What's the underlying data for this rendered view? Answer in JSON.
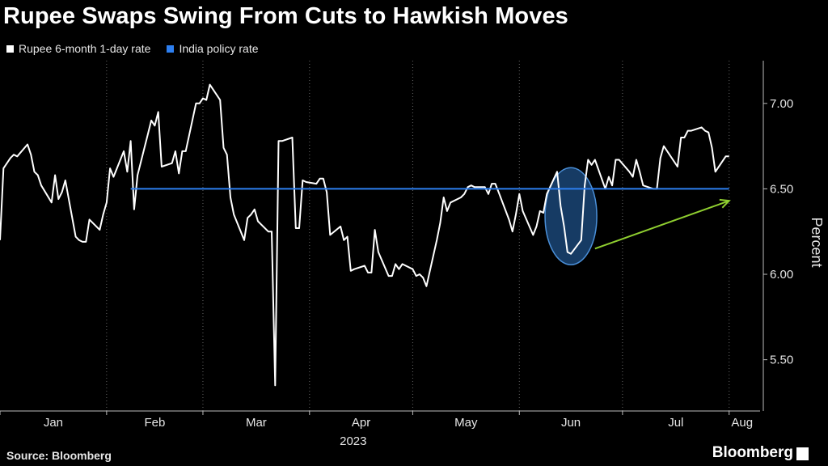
{
  "title": "Rupee Swaps Swing From Cuts to Hawkish Moves",
  "source": "Source: Bloomberg",
  "brand": "Bloomberg",
  "chart_data": {
    "type": "line",
    "legend": [
      {
        "name": "Rupee 6-month 1-day rate",
        "color": "#ffffff"
      },
      {
        "name": "India policy rate",
        "color": "#2d7ff0"
      }
    ],
    "ylabel": "Percent",
    "ylim": [
      5.2,
      7.25
    ],
    "yticks": [
      5.5,
      6.0,
      6.5,
      7.0
    ],
    "ytick_labels": [
      "5.50",
      "6.00",
      "6.50",
      "7.00"
    ],
    "xlim": [
      "2023-01-01",
      "2023-08-10"
    ],
    "xticks": [
      "Jan",
      "Feb",
      "Mar",
      "Apr",
      "May",
      "Jun",
      "Jul",
      "Aug"
    ],
    "xlabel": "2023",
    "grid": "vertical-dotted",
    "series": [
      {
        "name": "Rupee 6-month 1-day rate",
        "color": "#ffffff",
        "points": [
          [
            "2023-01-01",
            6.2
          ],
          [
            "2023-01-02",
            6.62
          ],
          [
            "2023-01-04",
            6.68
          ],
          [
            "2023-01-05",
            6.7
          ],
          [
            "2023-01-06",
            6.69
          ],
          [
            "2023-01-09",
            6.76
          ],
          [
            "2023-01-10",
            6.7
          ],
          [
            "2023-01-11",
            6.6
          ],
          [
            "2023-01-12",
            6.58
          ],
          [
            "2023-01-13",
            6.52
          ],
          [
            "2023-01-16",
            6.42
          ],
          [
            "2023-01-17",
            6.58
          ],
          [
            "2023-01-18",
            6.44
          ],
          [
            "2023-01-19",
            6.48
          ],
          [
            "2023-01-20",
            6.55
          ],
          [
            "2023-01-23",
            6.22
          ],
          [
            "2023-01-24",
            6.2
          ],
          [
            "2023-01-25",
            6.19
          ],
          [
            "2023-01-26",
            6.19
          ],
          [
            "2023-01-27",
            6.32
          ],
          [
            "2023-01-30",
            6.26
          ],
          [
            "2023-01-31",
            6.35
          ],
          [
            "2023-02-01",
            6.42
          ],
          [
            "2023-02-02",
            6.62
          ],
          [
            "2023-02-03",
            6.57
          ],
          [
            "2023-02-06",
            6.72
          ],
          [
            "2023-02-07",
            6.6
          ],
          [
            "2023-02-08",
            6.78
          ],
          [
            "2023-02-09",
            6.38
          ],
          [
            "2023-02-10",
            6.58
          ],
          [
            "2023-02-13",
            6.82
          ],
          [
            "2023-02-14",
            6.9
          ],
          [
            "2023-02-15",
            6.87
          ],
          [
            "2023-02-16",
            6.95
          ],
          [
            "2023-02-17",
            6.63
          ],
          [
            "2023-02-20",
            6.65
          ],
          [
            "2023-02-21",
            6.72
          ],
          [
            "2023-02-22",
            6.59
          ],
          [
            "2023-02-23",
            6.72
          ],
          [
            "2023-02-24",
            6.72
          ],
          [
            "2023-02-27",
            7.0
          ],
          [
            "2023-02-28",
            7.0
          ],
          [
            "2023-03-01",
            7.03
          ],
          [
            "2023-03-02",
            7.02
          ],
          [
            "2023-03-03",
            7.11
          ],
          [
            "2023-03-06",
            7.02
          ],
          [
            "2023-03-07",
            6.74
          ],
          [
            "2023-03-08",
            6.7
          ],
          [
            "2023-03-09",
            6.45
          ],
          [
            "2023-03-10",
            6.35
          ],
          [
            "2023-03-13",
            6.2
          ],
          [
            "2023-03-14",
            6.33
          ],
          [
            "2023-03-15",
            6.35
          ],
          [
            "2023-03-16",
            6.38
          ],
          [
            "2023-03-17",
            6.31
          ],
          [
            "2023-03-20",
            6.25
          ],
          [
            "2023-03-21",
            6.25
          ],
          [
            "2023-03-22",
            5.35
          ],
          [
            "2023-03-23",
            6.78
          ],
          [
            "2023-03-24",
            6.78
          ],
          [
            "2023-03-27",
            6.8
          ],
          [
            "2023-03-28",
            6.27
          ],
          [
            "2023-03-29",
            6.27
          ],
          [
            "2023-03-30",
            6.55
          ],
          [
            "2023-03-31",
            6.54
          ],
          [
            "2023-04-03",
            6.53
          ],
          [
            "2023-04-04",
            6.56
          ],
          [
            "2023-04-05",
            6.56
          ],
          [
            "2023-04-06",
            6.48
          ],
          [
            "2023-04-07",
            6.23
          ],
          [
            "2023-04-10",
            6.28
          ],
          [
            "2023-04-11",
            6.2
          ],
          [
            "2023-04-12",
            6.22
          ],
          [
            "2023-04-13",
            6.02
          ],
          [
            "2023-04-14",
            6.03
          ],
          [
            "2023-04-17",
            6.05
          ],
          [
            "2023-04-18",
            6.01
          ],
          [
            "2023-04-19",
            6.01
          ],
          [
            "2023-04-20",
            6.26
          ],
          [
            "2023-04-21",
            6.13
          ],
          [
            "2023-04-24",
            5.99
          ],
          [
            "2023-04-25",
            5.99
          ],
          [
            "2023-04-26",
            6.06
          ],
          [
            "2023-04-27",
            6.03
          ],
          [
            "2023-04-28",
            6.06
          ],
          [
            "2023-05-01",
            6.03
          ],
          [
            "2023-05-02",
            5.99
          ],
          [
            "2023-05-03",
            6.0
          ],
          [
            "2023-05-04",
            5.98
          ],
          [
            "2023-05-05",
            5.93
          ],
          [
            "2023-05-08",
            6.2
          ],
          [
            "2023-05-09",
            6.3
          ],
          [
            "2023-05-10",
            6.45
          ],
          [
            "2023-05-11",
            6.37
          ],
          [
            "2023-05-12",
            6.42
          ],
          [
            "2023-05-15",
            6.45
          ],
          [
            "2023-05-16",
            6.47
          ],
          [
            "2023-05-17",
            6.51
          ],
          [
            "2023-05-18",
            6.52
          ],
          [
            "2023-05-19",
            6.51
          ],
          [
            "2023-05-22",
            6.51
          ],
          [
            "2023-05-23",
            6.47
          ],
          [
            "2023-05-24",
            6.53
          ],
          [
            "2023-05-25",
            6.53
          ],
          [
            "2023-05-26",
            6.48
          ],
          [
            "2023-05-29",
            6.32
          ],
          [
            "2023-05-30",
            6.25
          ],
          [
            "2023-05-31",
            6.35
          ],
          [
            "2023-06-01",
            6.47
          ],
          [
            "2023-06-02",
            6.37
          ],
          [
            "2023-06-05",
            6.23
          ],
          [
            "2023-06-06",
            6.28
          ],
          [
            "2023-06-07",
            6.37
          ],
          [
            "2023-06-08",
            6.36
          ],
          [
            "2023-06-09",
            6.47
          ],
          [
            "2023-06-12",
            6.6
          ],
          [
            "2023-06-13",
            6.4
          ],
          [
            "2023-06-14",
            6.28
          ],
          [
            "2023-06-15",
            6.13
          ],
          [
            "2023-06-16",
            6.12
          ],
          [
            "2023-06-19",
            6.2
          ],
          [
            "2023-06-20",
            6.52
          ],
          [
            "2023-06-21",
            6.67
          ],
          [
            "2023-06-22",
            6.64
          ],
          [
            "2023-06-23",
            6.67
          ],
          [
            "2023-06-26",
            6.5
          ],
          [
            "2023-06-27",
            6.57
          ],
          [
            "2023-06-28",
            6.52
          ],
          [
            "2023-06-29",
            6.67
          ],
          [
            "2023-06-30",
            6.67
          ],
          [
            "2023-07-03",
            6.6
          ],
          [
            "2023-07-04",
            6.57
          ],
          [
            "2023-07-05",
            6.67
          ],
          [
            "2023-07-06",
            6.6
          ],
          [
            "2023-07-07",
            6.52
          ],
          [
            "2023-07-10",
            6.5
          ],
          [
            "2023-07-11",
            6.5
          ],
          [
            "2023-07-12",
            6.68
          ],
          [
            "2023-07-13",
            6.75
          ],
          [
            "2023-07-14",
            6.72
          ],
          [
            "2023-07-17",
            6.63
          ],
          [
            "2023-07-18",
            6.8
          ],
          [
            "2023-07-19",
            6.8
          ],
          [
            "2023-07-20",
            6.84
          ],
          [
            "2023-07-21",
            6.84
          ],
          [
            "2023-07-24",
            6.86
          ],
          [
            "2023-07-25",
            6.84
          ],
          [
            "2023-07-26",
            6.83
          ],
          [
            "2023-07-27",
            6.74
          ],
          [
            "2023-07-28",
            6.6
          ],
          [
            "2023-07-31",
            6.69
          ],
          [
            "2023-08-01",
            6.69
          ]
        ]
      },
      {
        "name": "India policy rate",
        "color": "#2d7ff0",
        "points": [
          [
            "2023-02-08",
            6.5
          ],
          [
            "2023-08-01",
            6.5
          ]
        ]
      }
    ],
    "annotations": [
      {
        "type": "ellipse",
        "center": [
          "2023-06-16",
          6.34
        ],
        "fill": "#1e4f86",
        "stroke": "#4a8fd8"
      },
      {
        "type": "arrow",
        "from": [
          "2023-06-23",
          6.15
        ],
        "to": [
          "2023-08-01",
          6.43
        ],
        "color": "#8fce30"
      }
    ]
  }
}
